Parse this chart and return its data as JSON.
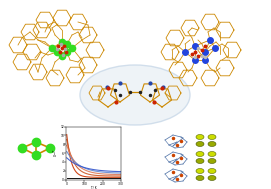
{
  "bg_color": "#ffffff",
  "gc": "#33dd22",
  "bc": "#2244dd",
  "bond": "#cc8800",
  "red": "#cc2200",
  "decay_colors": [
    "#cc3300",
    "#cc5522",
    "#dd7755",
    "#6688cc",
    "#3355cc",
    "#111111"
  ],
  "ellipse_color": "#c8d8e8"
}
